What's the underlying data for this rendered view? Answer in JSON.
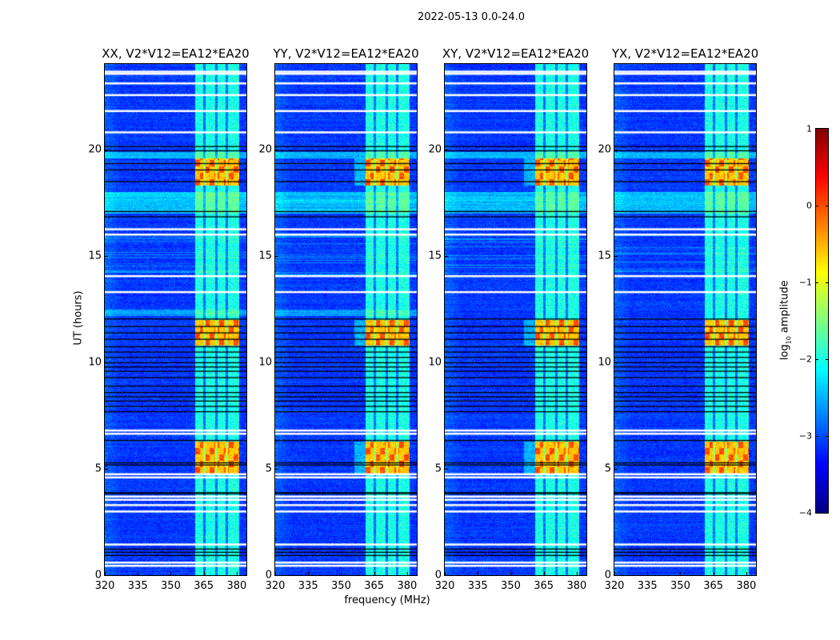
{
  "chart_data": {
    "type": "heatmap",
    "title": "2022-05-13 0.0-24.0",
    "xlabel": "frequency (MHz)",
    "ylabel": "UT (hours)",
    "xlim": [
      320,
      384.4
    ],
    "ylim": [
      0,
      24
    ],
    "xticks": [
      "320",
      "335",
      "350",
      "365",
      "380"
    ],
    "yticks": [
      "0",
      "5",
      "10",
      "15",
      "20"
    ],
    "panels": [
      {
        "title": "XX, V2*V12=EA12*EA20"
      },
      {
        "title": "YY, V2*V12=EA12*EA20"
      },
      {
        "title": "XY, V2*V12=EA12*EA20"
      },
      {
        "title": "YX, V2*V12=EA12*EA20"
      }
    ],
    "background_level_log10": -3.1,
    "signal_band_mhz": [
      361,
      381
    ],
    "signal_band_level_log10": -2.0,
    "rfi_burst_hours": [
      [
        4.8,
        6.3
      ],
      [
        10.8,
        12.0
      ],
      [
        18.3,
        19.6
      ]
    ],
    "rfi_burst_level_log10": -0.3,
    "flagged_hours": [
      0.45,
      0.6,
      1.45,
      3.0,
      3.3,
      3.55,
      3.7,
      4.6,
      4.75,
      6.65,
      6.8,
      13.3,
      14.05,
      16.0,
      16.25,
      20.8,
      21.8,
      22.55,
      23.1,
      23.55,
      23.65
    ],
    "colorbar": {
      "label": "log",
      "label_sub": "10",
      "label_rest": " amplitude",
      "range": [
        -4,
        1
      ],
      "ticks": [
        "1",
        "0",
        "−1",
        "−2",
        "−3",
        "−4"
      ],
      "colormap": "jet"
    }
  }
}
